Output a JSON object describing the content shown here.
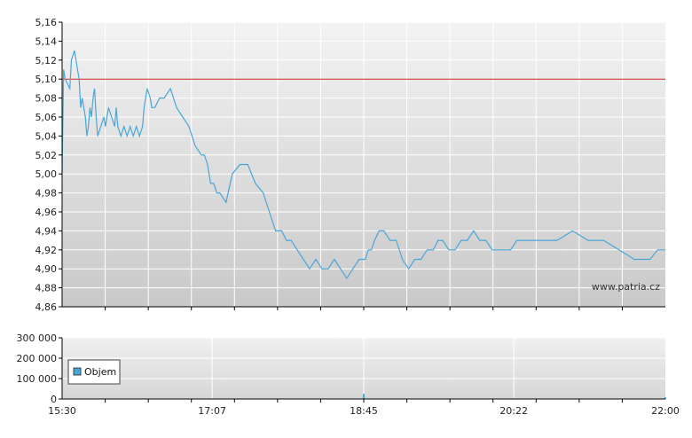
{
  "watermark": "www.patria.cz",
  "legend": {
    "label": "Objem"
  },
  "colors": {
    "price_line": "#4aa6d6",
    "reference_line": "#cc2222",
    "volume": "#4aa6d6",
    "grid": "#ffffff",
    "axis": "#000000"
  },
  "chart_data": [
    {
      "type": "line",
      "title": "",
      "xlabel": "",
      "ylabel": "",
      "ylim": [
        4.86,
        5.16
      ],
      "yticks": [
        "5,16",
        "5,14",
        "5,12",
        "5,10",
        "5,08",
        "5,06",
        "5,04",
        "5,02",
        "5,00",
        "4,98",
        "4,96",
        "4,94",
        "4,92",
        "4,90",
        "4,88",
        "4,86"
      ],
      "xlim": [
        "15:30",
        "22:00"
      ],
      "xticks": [
        "15:30",
        "17:07",
        "18:45",
        "20:22",
        "22:00"
      ],
      "reference_line": 5.1,
      "grid": true,
      "series": [
        {
          "x": [
            "15:30",
            "15:31",
            "15:32",
            "15:35",
            "15:36",
            "15:38",
            "15:39",
            "15:40",
            "15:41",
            "15:42",
            "15:43",
            "15:44",
            "15:45",
            "15:46",
            "15:47",
            "15:48",
            "15:49",
            "15:50",
            "15:51",
            "15:52",
            "15:53",
            "15:55",
            "15:57",
            "15:58",
            "16:00",
            "16:02",
            "16:04",
            "16:05",
            "16:06",
            "16:08",
            "16:10",
            "16:12",
            "16:14",
            "16:16",
            "16:18",
            "16:20",
            "16:22",
            "16:23",
            "16:25",
            "16:27",
            "16:28",
            "16:30",
            "16:33",
            "16:36",
            "16:40",
            "16:44",
            "16:48",
            "16:52",
            "16:56",
            "17:00",
            "17:02",
            "17:04",
            "17:06",
            "17:08",
            "17:10",
            "17:12",
            "17:16",
            "17:20",
            "17:25",
            "17:30",
            "17:35",
            "17:40",
            "17:44",
            "17:48",
            "17:52",
            "17:55",
            "17:58",
            "18:02",
            "18:06",
            "18:10",
            "18:14",
            "18:18",
            "18:22",
            "18:26",
            "18:30",
            "18:34",
            "18:38",
            "18:42",
            "18:46",
            "18:48",
            "18:50",
            "18:52",
            "18:55",
            "18:58",
            "19:02",
            "19:06",
            "19:10",
            "19:14",
            "19:18",
            "19:22",
            "19:26",
            "19:30",
            "19:33",
            "19:36",
            "19:40",
            "19:44",
            "19:48",
            "19:52",
            "19:56",
            "20:00",
            "20:04",
            "20:08",
            "20:12",
            "20:16",
            "20:20",
            "20:24",
            "20:28",
            "20:32",
            "20:40",
            "20:50",
            "21:00",
            "21:10",
            "21:20",
            "21:30",
            "21:40",
            "21:50",
            "21:55",
            "22:00"
          ],
          "y": [
            5.0,
            5.11,
            5.1,
            5.09,
            5.12,
            5.13,
            5.12,
            5.11,
            5.1,
            5.07,
            5.08,
            5.07,
            5.06,
            5.04,
            5.05,
            5.07,
            5.06,
            5.08,
            5.09,
            5.06,
            5.04,
            5.05,
            5.06,
            5.05,
            5.07,
            5.06,
            5.05,
            5.07,
            5.05,
            5.04,
            5.05,
            5.04,
            5.05,
            5.04,
            5.05,
            5.04,
            5.05,
            5.07,
            5.09,
            5.08,
            5.07,
            5.07,
            5.08,
            5.08,
            5.09,
            5.07,
            5.06,
            5.05,
            5.03,
            5.02,
            5.02,
            5.01,
            4.99,
            4.99,
            4.98,
            4.98,
            4.97,
            5.0,
            5.01,
            5.01,
            4.99,
            4.98,
            4.96,
            4.94,
            4.94,
            4.93,
            4.93,
            4.92,
            4.91,
            4.9,
            4.91,
            4.9,
            4.9,
            4.91,
            4.9,
            4.89,
            4.9,
            4.91,
            4.91,
            4.92,
            4.92,
            4.93,
            4.94,
            4.94,
            4.93,
            4.93,
            4.91,
            4.9,
            4.91,
            4.91,
            4.92,
            4.92,
            4.93,
            4.93,
            4.92,
            4.92,
            4.93,
            4.93,
            4.94,
            4.93,
            4.93,
            4.92,
            4.92,
            4.92,
            4.92,
            4.93,
            4.93,
            4.93,
            4.93,
            4.93,
            4.94,
            4.93,
            4.93,
            4.92,
            4.91,
            4.91,
            4.92,
            4.92
          ]
        }
      ]
    },
    {
      "type": "bar",
      "title": "",
      "xlabel": "",
      "ylabel": "",
      "ylim": [
        0,
        300000
      ],
      "yticks": [
        "300 000",
        "200 000",
        "100 000",
        "0"
      ],
      "xticks": [
        "15:30",
        "17:07",
        "18:45",
        "20:22",
        "22:00"
      ],
      "grid": true,
      "series": [
        {
          "name": "Objem",
          "x": [
            "15:30",
            "15:45",
            "16:30",
            "17:00",
            "17:30",
            "18:15",
            "18:45",
            "19:30",
            "20:22",
            "21:15",
            "22:00"
          ],
          "values": [
            3000,
            2000,
            1500,
            1200,
            2000,
            2500,
            25000,
            1000,
            3000,
            2000,
            8000
          ]
        }
      ]
    }
  ]
}
